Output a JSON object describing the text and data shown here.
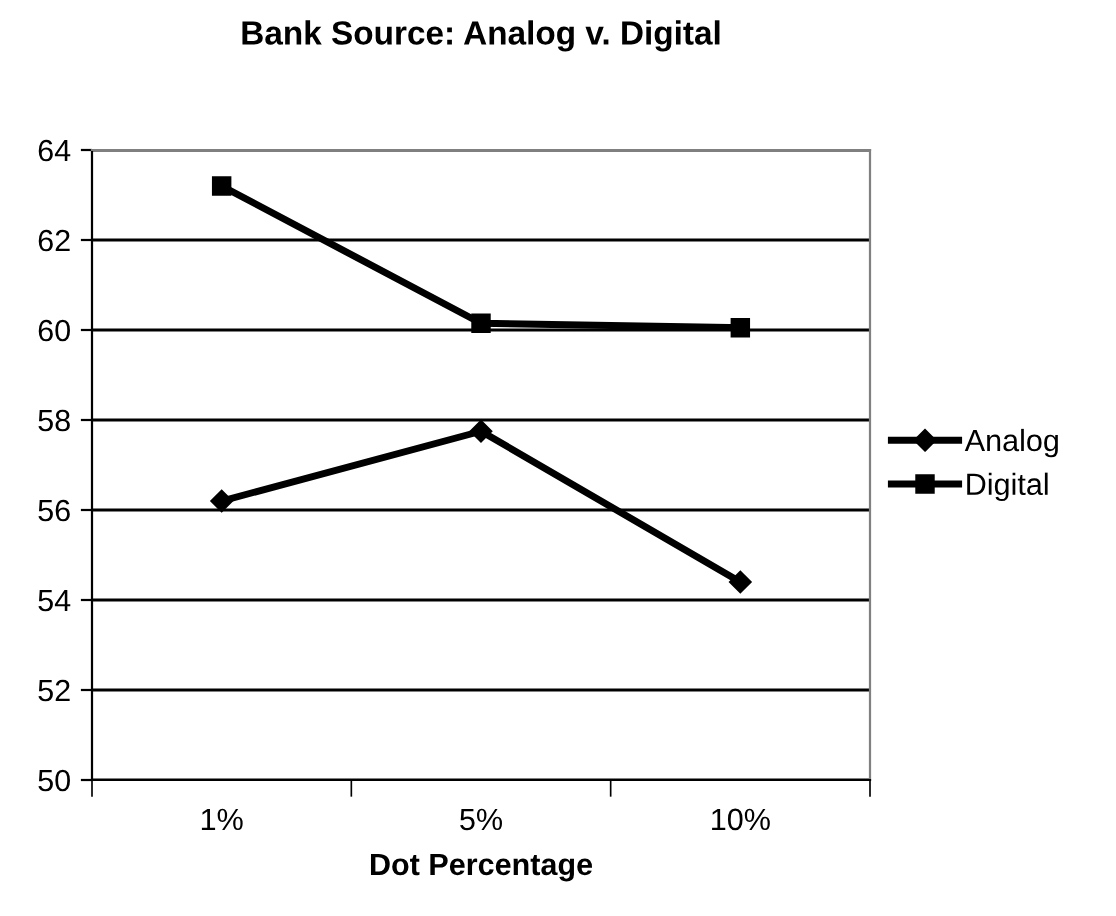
{
  "chart_data": {
    "type": "line",
    "title": "Bank Source: Analog v. Digital",
    "xlabel": "Dot Percentage",
    "categories": [
      "1%",
      "5%",
      "10%"
    ],
    "series": [
      {
        "name": "Analog",
        "color": "#000000",
        "marker": "diamond",
        "values": [
          56.2,
          57.75,
          54.4
        ]
      },
      {
        "name": "Digital",
        "color": "#000000",
        "marker": "square",
        "values": [
          63.2,
          60.15,
          60.05
        ]
      }
    ],
    "ylim": [
      50,
      64
    ],
    "yticks": [
      50,
      52,
      54,
      56,
      58,
      60,
      62,
      64
    ],
    "grid": "y",
    "legend": "right",
    "line_style": "solid"
  }
}
